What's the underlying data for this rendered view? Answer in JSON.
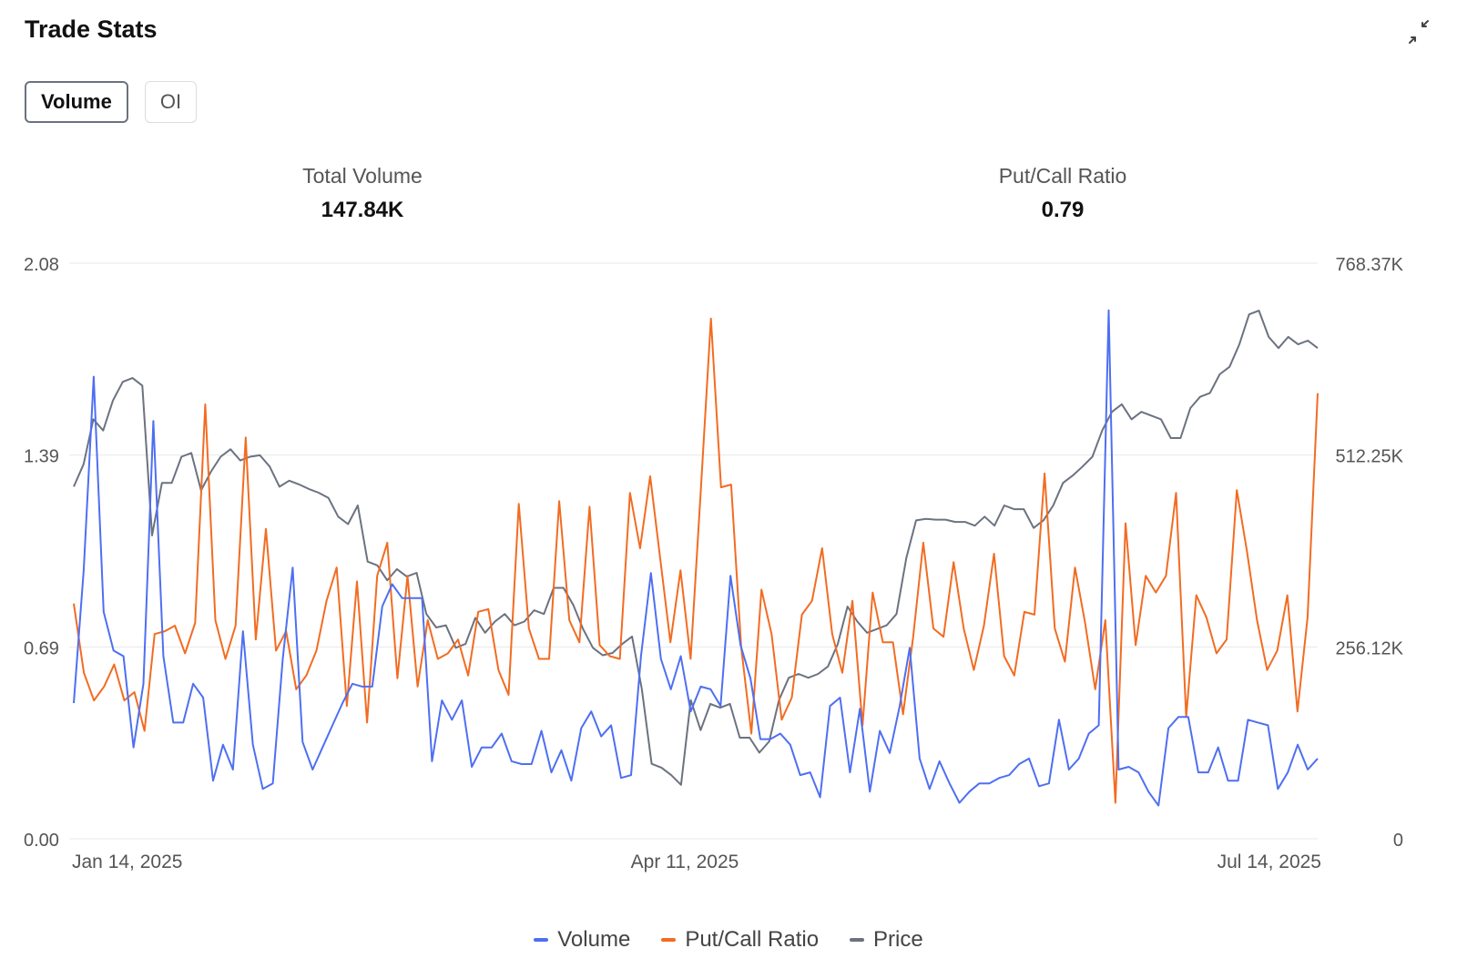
{
  "header": {
    "title": "Trade Stats"
  },
  "icons": {
    "collapse": "collapse-arrows-icon"
  },
  "tabs": [
    {
      "label": "Volume",
      "active": true
    },
    {
      "label": "OI",
      "active": false
    }
  ],
  "stats": {
    "total_volume": {
      "label": "Total Volume",
      "value": "147.84K"
    },
    "put_call_ratio": {
      "label": "Put/Call Ratio",
      "value": "0.79"
    }
  },
  "colors": {
    "volume": "#4e6ff2",
    "put_call": "#f26c22",
    "price": "#6b7280",
    "grid": "#e8e8e8",
    "text": "#555555"
  },
  "chart_data": {
    "type": "line",
    "x_range": [
      "2025-01-14",
      "2025-07-14"
    ],
    "x_ticks": [
      "Jan 14, 2025",
      "Apr 11, 2025",
      "Jul 14, 2025"
    ],
    "y_left": {
      "ticks": [
        "2.08",
        "1.39",
        "0.69",
        "0.00"
      ],
      "range": [
        0,
        2.08
      ]
    },
    "y_right": {
      "ticks": [
        "768.37K",
        "512.25K",
        "256.12K",
        "0"
      ],
      "range": [
        0,
        768370
      ]
    },
    "grid": true,
    "legend_position": "bottom-center",
    "series": [
      {
        "name": "Volume",
        "axis": "left",
        "color": "#4e6ff2",
        "values": [
          0.49,
          0.97,
          1.67,
          0.82,
          0.68,
          0.66,
          0.33,
          0.56,
          1.51,
          0.66,
          0.42,
          0.42,
          0.56,
          0.51,
          0.21,
          0.34,
          0.25,
          0.75,
          0.34,
          0.18,
          0.2,
          0.65,
          0.98,
          0.35,
          0.25,
          0.33,
          0.41,
          0.49,
          0.56,
          0.55,
          0.55,
          0.84,
          0.92,
          0.87,
          0.87,
          0.87,
          0.28,
          0.5,
          0.43,
          0.5,
          0.26,
          0.33,
          0.33,
          0.38,
          0.28,
          0.27,
          0.27,
          0.39,
          0.24,
          0.32,
          0.21,
          0.4,
          0.46,
          0.37,
          0.41,
          0.22,
          0.23,
          0.66,
          0.96,
          0.65,
          0.54,
          0.66,
          0.46,
          0.55,
          0.54,
          0.48,
          0.95,
          0.7,
          0.58,
          0.36,
          0.36,
          0.38,
          0.34,
          0.23,
          0.24,
          0.15,
          0.48,
          0.51,
          0.24,
          0.47,
          0.17,
          0.39,
          0.31,
          0.48,
          0.69,
          0.29,
          0.18,
          0.28,
          0.2,
          0.13,
          0.17,
          0.2,
          0.2,
          0.22,
          0.23,
          0.27,
          0.29,
          0.19,
          0.2,
          0.43,
          0.25,
          0.29,
          0.38,
          0.41,
          1.91,
          0.25,
          0.26,
          0.24,
          0.17,
          0.12,
          0.4,
          0.44,
          0.44,
          0.24,
          0.24,
          0.33,
          0.21,
          0.21,
          0.43,
          0.42,
          0.41,
          0.18,
          0.24,
          0.34,
          0.25,
          0.29
        ]
      },
      {
        "name": "Put/Call Ratio",
        "axis": "left",
        "color": "#f26c22",
        "values": [
          0.85,
          0.6,
          0.5,
          0.55,
          0.63,
          0.5,
          0.53,
          0.39,
          0.74,
          0.75,
          0.77,
          0.67,
          0.78,
          1.57,
          0.79,
          0.65,
          0.77,
          1.45,
          0.72,
          1.12,
          0.68,
          0.75,
          0.54,
          0.59,
          0.68,
          0.86,
          0.98,
          0.48,
          0.93,
          0.42,
          0.95,
          1.07,
          0.58,
          0.95,
          0.55,
          0.79,
          0.65,
          0.67,
          0.72,
          0.59,
          0.82,
          0.83,
          0.61,
          0.52,
          1.21,
          0.76,
          0.65,
          0.65,
          1.22,
          0.79,
          0.71,
          1.2,
          0.7,
          0.66,
          0.65,
          1.25,
          1.05,
          1.31,
          1.01,
          0.71,
          0.97,
          0.65,
          1.26,
          1.88,
          1.27,
          1.28,
          0.69,
          0.38,
          0.9,
          0.74,
          0.43,
          0.51,
          0.81,
          0.86,
          1.05,
          0.74,
          0.6,
          0.86,
          0.41,
          0.89,
          0.71,
          0.71,
          0.45,
          0.73,
          1.07,
          0.76,
          0.73,
          1.0,
          0.76,
          0.61,
          0.77,
          1.03,
          0.66,
          0.59,
          0.82,
          0.81,
          1.32,
          0.76,
          0.64,
          0.98,
          0.78,
          0.54,
          0.79,
          0.13,
          1.14,
          0.7,
          0.95,
          0.89,
          0.95,
          1.25,
          0.44,
          0.88,
          0.8,
          0.67,
          0.72,
          1.26,
          1.04,
          0.79,
          0.61,
          0.68,
          0.88,
          0.46,
          0.8,
          1.61
        ]
      },
      {
        "name": "Price",
        "axis": "right",
        "color": "#6b7280",
        "values": [
          470000,
          500000,
          560000,
          545000,
          585000,
          610000,
          615000,
          605000,
          405000,
          475000,
          475000,
          510000,
          515000,
          465000,
          490000,
          510000,
          520000,
          505000,
          510000,
          512000,
          497000,
          470000,
          478000,
          473000,
          467000,
          462000,
          455000,
          430000,
          420000,
          445000,
          370000,
          365000,
          345000,
          360000,
          350000,
          355000,
          300000,
          282000,
          285000,
          255000,
          260000,
          295000,
          275000,
          290000,
          300000,
          285000,
          290000,
          305000,
          300000,
          335000,
          335000,
          312000,
          280000,
          255000,
          245000,
          248000,
          260000,
          270000,
          200000,
          100000,
          95000,
          85000,
          72000,
          185000,
          145000,
          180000,
          175000,
          180000,
          135000,
          135000,
          115000,
          130000,
          185000,
          215000,
          220000,
          215000,
          220000,
          230000,
          260000,
          310000,
          290000,
          275000,
          280000,
          285000,
          300000,
          375000,
          425000,
          427000,
          426000,
          426000,
          423000,
          423000,
          418000,
          430000,
          418000,
          445000,
          440000,
          440000,
          415000,
          425000,
          445000,
          475000,
          485000,
          497000,
          510000,
          545000,
          570000,
          580000,
          560000,
          570000,
          565000,
          560000,
          535000,
          535000,
          575000,
          590000,
          595000,
          620000,
          630000,
          660000,
          700000,
          705000,
          670000,
          655000,
          670000,
          660000,
          665000,
          655000
        ]
      }
    ]
  }
}
